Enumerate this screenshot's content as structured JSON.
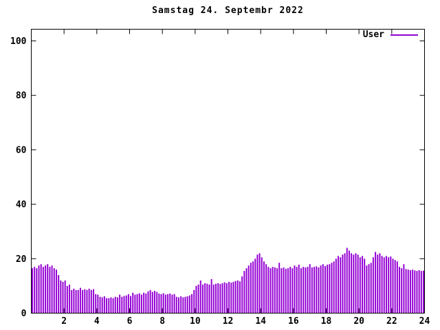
{
  "title": "Samstag 24. Septembr 2022",
  "legend": {
    "label": "User"
  },
  "colors": {
    "series": "#9400d3",
    "axis": "#000000",
    "text": "#000000",
    "background": "#ffffff"
  },
  "chart_data": {
    "type": "bar",
    "title": "Samstag 24. Septembr 2022",
    "xlabel": "",
    "ylabel": "",
    "x_unit": "hour-of-day",
    "xlim": [
      0,
      24
    ],
    "ylim": [
      0,
      104
    ],
    "x_ticks": [
      2,
      4,
      6,
      8,
      10,
      12,
      14,
      16,
      18,
      20,
      22,
      24
    ],
    "y_ticks": [
      0,
      20,
      40,
      60,
      80,
      100
    ],
    "grid": false,
    "legend_position": "top-right-inside",
    "series": [
      {
        "name": "User",
        "color": "#9400d3",
        "style": "impulses",
        "values": [
          16.5,
          17,
          16.5,
          17.5,
          18,
          17,
          17.5,
          18,
          17,
          17.5,
          16.5,
          16,
          14,
          12,
          11.5,
          12,
          10,
          10.5,
          8.5,
          9,
          8.5,
          8.5,
          9.3,
          8.5,
          8.8,
          8.5,
          9,
          8.5,
          8.8,
          7,
          6.8,
          6,
          5.8,
          6.2,
          5.5,
          5.5,
          5.8,
          5.5,
          6,
          5.8,
          6.8,
          6,
          6.3,
          6.5,
          7,
          6.3,
          7.5,
          6.8,
          7,
          7.3,
          6.8,
          7.5,
          7.2,
          8,
          8.5,
          7.8,
          8.2,
          7.8,
          7.2,
          7,
          7.3,
          6.8,
          7,
          7.2,
          6.8,
          7,
          6,
          5.8,
          6.2,
          5.8,
          6,
          6.2,
          6.5,
          7,
          8.5,
          10,
          10.5,
          12,
          10.5,
          11,
          10.8,
          10.5,
          12.5,
          10.5,
          10.8,
          11,
          10.7,
          11,
          11.3,
          11,
          11.5,
          11.2,
          11.5,
          11.8,
          12,
          11.7,
          13.5,
          15.5,
          16.5,
          17.5,
          18.5,
          19,
          20,
          21.5,
          22,
          20.5,
          19,
          18,
          17,
          16.5,
          17,
          16.8,
          16.5,
          18.5,
          16.5,
          16.8,
          16.3,
          16.5,
          17,
          16.5,
          17.5,
          17,
          17.8,
          16.5,
          17,
          16.8,
          17,
          18,
          16.8,
          17,
          17.2,
          16.8,
          17.5,
          18,
          17.3,
          17.8,
          18,
          18.5,
          19,
          20,
          21,
          20.5,
          21.5,
          22,
          24,
          23,
          22,
          21.5,
          22,
          21.5,
          20.5,
          21,
          20,
          17.5,
          18,
          18.5,
          20.5,
          22.5,
          21.5,
          22,
          21,
          20.5,
          21,
          20.5,
          20.8,
          20,
          19.5,
          19,
          17,
          16.5,
          18,
          16.2,
          16,
          15.8,
          16,
          15.7,
          15.5,
          15.8,
          15.5,
          15.6
        ]
      }
    ]
  }
}
